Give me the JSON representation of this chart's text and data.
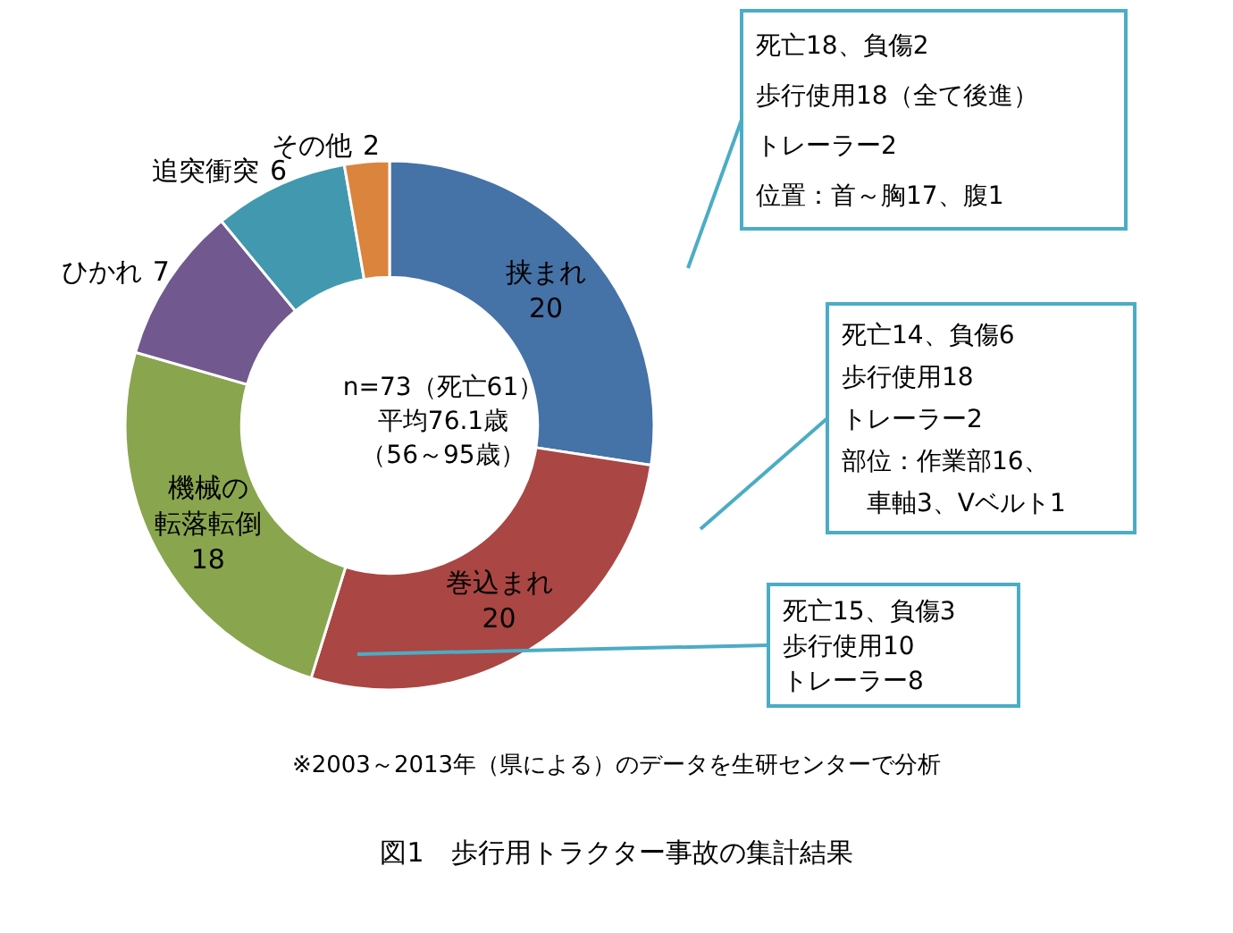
{
  "chart_data": {
    "type": "donut",
    "title": "図1　歩行用トラクター事故の集計結果",
    "categories": [
      "挟まれ",
      "巻込まれ",
      "機械の転落転倒",
      "ひかれ",
      "追突衝突",
      "その他"
    ],
    "values": [
      20,
      20,
      18,
      7,
      6,
      2
    ],
    "colors": [
      "#4572a7",
      "#aa4643",
      "#89a54e",
      "#71588f",
      "#4198af",
      "#db843d"
    ],
    "data_labels": true,
    "annotations": [
      "n=73（死亡61）",
      "平均76.1歳",
      "（56～95歳）",
      "死亡18、負傷2",
      "歩行使用18（全て後進）",
      "トレーラー2",
      "位置：首～胸17、腹1",
      "死亡14、負傷6",
      "歩行使用18",
      "トレーラー2",
      "部位：作業部16、",
      "　車軸3、Vベルト1",
      "死亡15、負傷3",
      "歩行使用10",
      "トレーラー8",
      "※2003～2013年（県による）のデータを生研センターで分析"
    ]
  }
}
